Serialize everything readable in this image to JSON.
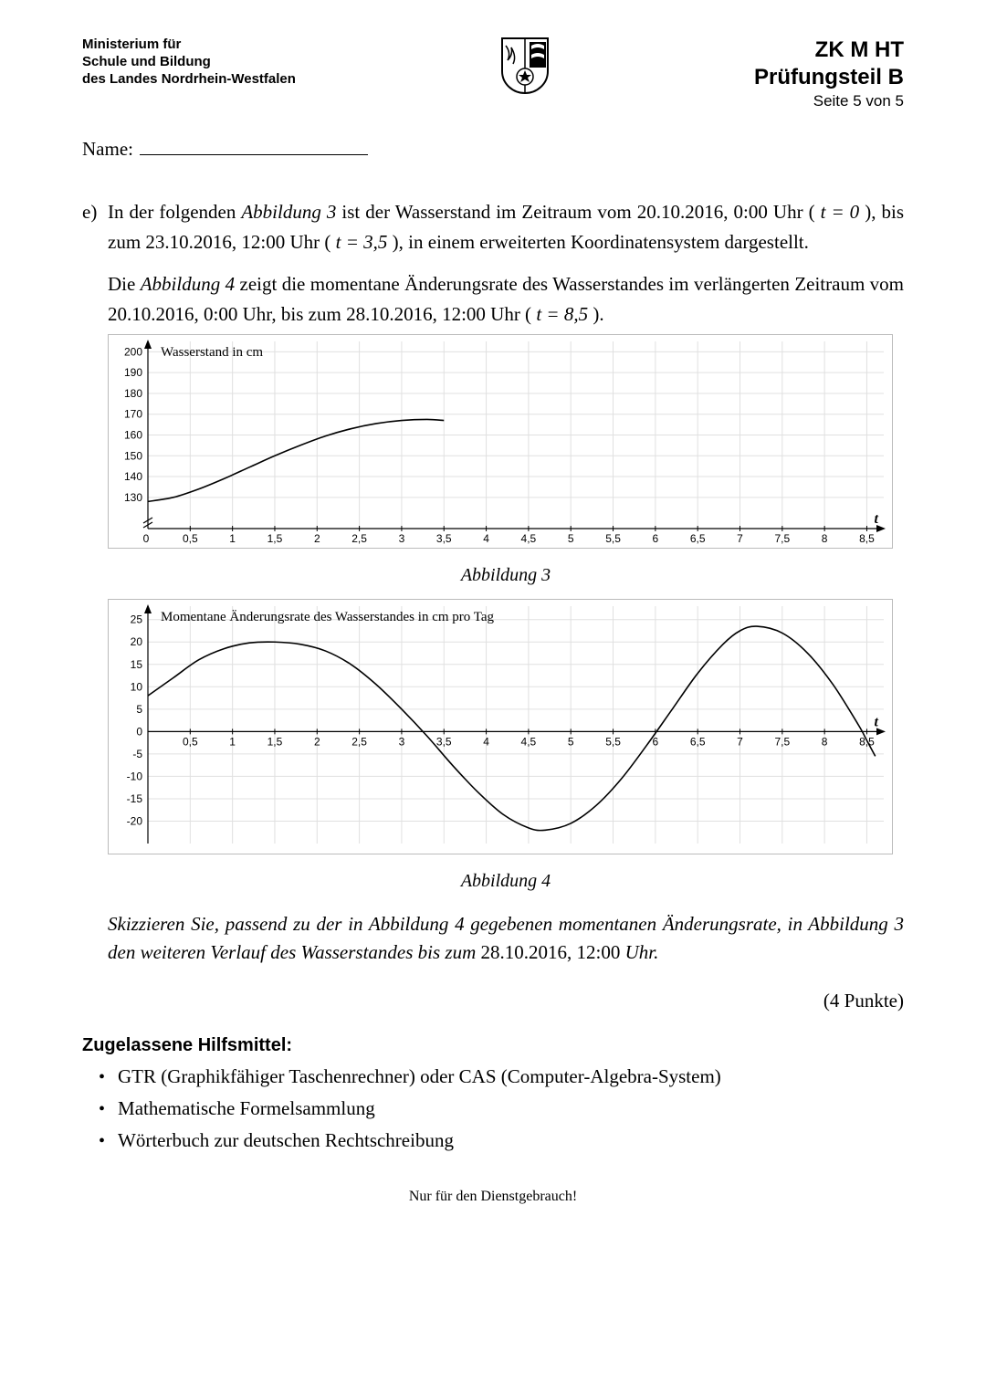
{
  "header": {
    "ministry_line1": "Ministerium für",
    "ministry_line2": "Schule und Bildung",
    "ministry_line3": "des Landes Nordrhein-Westfalen",
    "exam_code": "ZK M HT",
    "exam_part": "Prüfungsteil B",
    "page_info": "Seite 5 von 5"
  },
  "name_label": "Name:",
  "task": {
    "marker": "e)",
    "para1_a": "In der folgenden ",
    "para1_b": "Abbildung 3",
    "para1_c": " ist der Wasserstand im Zeitraum vom 20.10.2016, 0:00 Uhr ( ",
    "para1_d": "t = 0",
    "para1_e": " ), bis zum 23.10.2016, 12:00 Uhr ( ",
    "para1_f": "t = 3,5",
    "para1_g": " ), in einem erweiterten Koordinatensystem dargestellt.",
    "para2_a": "Die ",
    "para2_b": "Abbildung 4",
    "para2_c": " zeigt die momentane Änderungsrate des Wasserstandes im verlängerten Zeitraum vom 20.10.2016, 0:00 Uhr, bis zum 28.10.2016, 12:00 Uhr ( ",
    "para2_d": "t = 8,5",
    "para2_e": " )."
  },
  "chart3": {
    "title": "Wasserstand in cm",
    "axis_label": "t",
    "caption": "Abbildung 3",
    "x_min": 0,
    "x_max": 8.7,
    "y_min": 115,
    "y_max": 205,
    "y_ticks": [
      130,
      140,
      150,
      160,
      170,
      180,
      190,
      200
    ],
    "x_ticks": [
      0.5,
      1,
      1.5,
      2,
      2.5,
      3,
      3.5,
      4,
      4.5,
      5,
      5.5,
      6,
      6.5,
      7,
      7.5,
      8,
      8.5
    ],
    "zero_label": "0",
    "grid_color": "#e0e0e0",
    "border_color": "#bbbbbb",
    "series_color": "#000000",
    "data": [
      [
        0,
        128
      ],
      [
        0.3,
        130
      ],
      [
        0.6,
        134
      ],
      [
        0.9,
        139
      ],
      [
        1.2,
        144.5
      ],
      [
        1.5,
        150
      ],
      [
        1.8,
        155
      ],
      [
        2.1,
        159.5
      ],
      [
        2.4,
        163
      ],
      [
        2.7,
        165.5
      ],
      [
        3.0,
        167
      ],
      [
        3.3,
        167.5
      ],
      [
        3.5,
        167
      ]
    ]
  },
  "chart4": {
    "title": "Momentane Änderungsrate des Wasserstandes in cm pro Tag",
    "axis_label": "t",
    "caption": "Abbildung 4",
    "x_min": 0,
    "x_max": 8.7,
    "y_min": -25,
    "y_max": 28,
    "y_ticks": [
      -20,
      -15,
      -10,
      -5,
      0,
      5,
      10,
      15,
      20,
      25
    ],
    "x_ticks": [
      0.5,
      1,
      1.5,
      2,
      2.5,
      3,
      3.5,
      4,
      4.5,
      5,
      5.5,
      6,
      6.5,
      7,
      7.5,
      8,
      8.5
    ],
    "grid_color": "#e0e0e0",
    "border_color": "#bbbbbb",
    "series_color": "#000000",
    "data": [
      [
        0,
        8
      ],
      [
        0.3,
        12
      ],
      [
        0.6,
        16
      ],
      [
        0.9,
        18.5
      ],
      [
        1.2,
        19.8
      ],
      [
        1.5,
        20
      ],
      [
        1.8,
        19.5
      ],
      [
        2.1,
        18
      ],
      [
        2.4,
        15
      ],
      [
        2.7,
        10.5
      ],
      [
        3.0,
        5
      ],
      [
        3.3,
        -1
      ],
      [
        3.6,
        -7.5
      ],
      [
        3.9,
        -13.5
      ],
      [
        4.2,
        -18.5
      ],
      [
        4.5,
        -21.5
      ],
      [
        4.7,
        -22
      ],
      [
        5.0,
        -20.5
      ],
      [
        5.3,
        -16.5
      ],
      [
        5.6,
        -10.5
      ],
      [
        5.9,
        -3
      ],
      [
        6.2,
        5
      ],
      [
        6.5,
        13
      ],
      [
        6.8,
        19.5
      ],
      [
        7.0,
        22.5
      ],
      [
        7.2,
        23.5
      ],
      [
        7.5,
        22
      ],
      [
        7.8,
        17.5
      ],
      [
        8.1,
        10.5
      ],
      [
        8.4,
        1.5
      ],
      [
        8.5,
        -2
      ],
      [
        8.6,
        -5.5
      ]
    ]
  },
  "instruction_a": "Skizzieren Sie, passend zu der in Abbildung 4 gegebenen momentanen Änderungsrate, in Abbildung 3 den weiteren Verlauf des Wasserstandes bis zum ",
  "instruction_b": "28.10.2016, 12:00 ",
  "instruction_c": "Uhr.",
  "points": "(4 Punkte)",
  "tools_heading": "Zugelassene Hilfsmittel:",
  "tools": [
    "GTR (Graphikfähiger Taschenrechner) oder CAS (Computer-Algebra-System)",
    "Mathematische Formelsammlung",
    "Wörterbuch zur deutschen Rechtschreibung"
  ],
  "footer": "Nur für den Dienstgebrauch!"
}
